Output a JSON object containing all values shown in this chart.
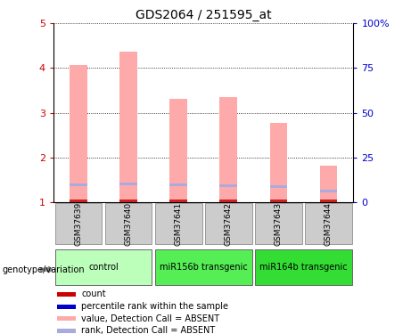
{
  "title": "GDS2064 / 251595_at",
  "samples": [
    "GSM37639",
    "GSM37640",
    "GSM37641",
    "GSM37642",
    "GSM37643",
    "GSM37644"
  ],
  "pink_values": [
    4.07,
    4.37,
    3.32,
    3.35,
    2.77,
    1.82
  ],
  "blue_values": [
    1.38,
    1.4,
    1.38,
    1.37,
    1.35,
    1.25
  ],
  "red_base": 1.0,
  "groups": [
    {
      "label": "control",
      "start": 0,
      "end": 2,
      "color": "#bbffbb"
    },
    {
      "label": "miR156b transgenic",
      "start": 2,
      "end": 4,
      "color": "#55ee55"
    },
    {
      "label": "miR164b transgenic",
      "start": 4,
      "end": 6,
      "color": "#33dd33"
    }
  ],
  "ylim": [
    1,
    5
  ],
  "yticks_left": [
    1,
    2,
    3,
    4,
    5
  ],
  "ytick_labels_right": [
    "0",
    "25",
    "50",
    "75",
    "100%"
  ],
  "ylabel_left_color": "#cc0000",
  "ylabel_right_color": "#0000cc",
  "legend_items": [
    {
      "label": "count",
      "color": "#cc0000"
    },
    {
      "label": "percentile rank within the sample",
      "color": "#0000cc"
    },
    {
      "label": "value, Detection Call = ABSENT",
      "color": "#ffaaaa"
    },
    {
      "label": "rank, Detection Call = ABSENT",
      "color": "#aaaadd"
    }
  ],
  "genotype_label": "genotype/variation",
  "bar_width": 0.35,
  "sample_box_color": "#cccccc",
  "bar_pink_color": "#ffaaaa",
  "bar_blue_color": "#aaaadd",
  "bar_red_color": "#cc2222"
}
